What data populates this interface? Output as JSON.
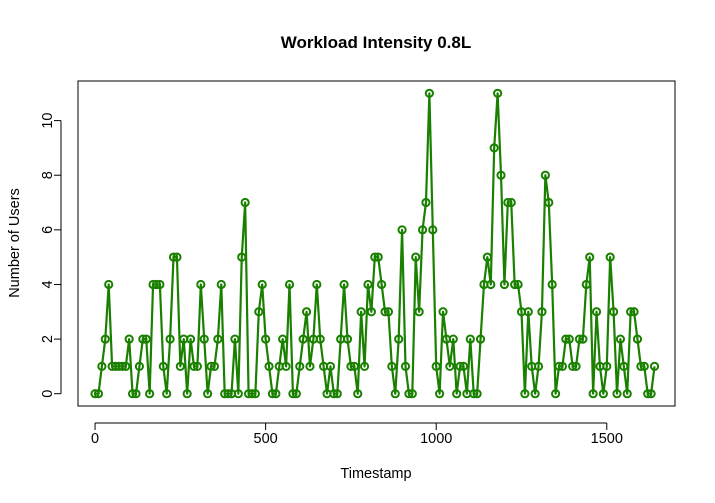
{
  "chart_data": {
    "type": "line",
    "title": "Workload Intensity 0.8L",
    "xlabel": "Timestamp",
    "ylabel": "Number of Users",
    "xlim": [
      -50,
      1700
    ],
    "ylim": [
      -0.45,
      11.45
    ],
    "x_ticks": [
      0,
      500,
      1000,
      1500
    ],
    "y_ticks": [
      0,
      2,
      4,
      6,
      8,
      10
    ],
    "grid": false,
    "legend": "none",
    "series": [
      {
        "color": "#1a8000",
        "marker": "open-circle",
        "x": [
          0,
          10,
          20,
          30,
          40,
          50,
          60,
          70,
          80,
          90,
          100,
          110,
          120,
          130,
          140,
          150,
          160,
          170,
          180,
          190,
          200,
          210,
          220,
          230,
          240,
          250,
          260,
          270,
          280,
          290,
          300,
          310,
          320,
          330,
          340,
          350,
          360,
          370,
          380,
          390,
          400,
          410,
          420,
          430,
          440,
          450,
          460,
          470,
          480,
          490,
          500,
          510,
          520,
          530,
          540,
          550,
          560,
          570,
          580,
          590,
          600,
          610,
          620,
          630,
          640,
          650,
          660,
          670,
          680,
          690,
          700,
          710,
          720,
          730,
          740,
          750,
          760,
          770,
          780,
          790,
          800,
          810,
          820,
          830,
          840,
          850,
          860,
          870,
          880,
          890,
          900,
          910,
          920,
          930,
          940,
          950,
          960,
          970,
          980,
          990,
          1000,
          1010,
          1020,
          1030,
          1040,
          1050,
          1060,
          1070,
          1080,
          1090,
          1100,
          1110,
          1120,
          1130,
          1140,
          1150,
          1160,
          1170,
          1180,
          1190,
          1200,
          1210,
          1220,
          1230,
          1240,
          1250,
          1260,
          1270,
          1280,
          1290,
          1300,
          1310,
          1320,
          1330,
          1340,
          1350,
          1360,
          1370,
          1380,
          1390,
          1400,
          1410,
          1420,
          1430,
          1440,
          1450,
          1460,
          1470,
          1480,
          1490,
          1500,
          1510,
          1520,
          1530,
          1540,
          1550,
          1560,
          1570,
          1580,
          1590,
          1600,
          1610,
          1620,
          1630,
          1640
        ],
        "y": [
          0,
          0,
          1,
          2,
          4,
          1,
          1,
          1,
          1,
          1,
          2,
          0,
          0,
          1,
          2,
          2,
          0,
          4,
          4,
          4,
          1,
          0,
          2,
          5,
          5,
          1,
          2,
          0,
          2,
          1,
          1,
          4,
          2,
          0,
          1,
          1,
          2,
          4,
          0,
          0,
          0,
          2,
          0,
          5,
          7,
          0,
          0,
          0,
          3,
          4,
          2,
          1,
          0,
          0,
          1,
          2,
          1,
          4,
          0,
          0,
          1,
          2,
          3,
          1,
          2,
          4,
          2,
          1,
          0,
          1,
          0,
          0,
          2,
          4,
          2,
          1,
          1,
          0,
          3,
          1,
          4,
          3,
          5,
          5,
          4,
          3,
          3,
          1,
          0,
          2,
          6,
          1,
          0,
          0,
          5,
          3,
          6,
          7,
          11,
          6,
          1,
          0,
          3,
          2,
          1,
          2,
          0,
          1,
          1,
          0,
          2,
          0,
          0,
          2,
          4,
          5,
          4,
          9,
          11,
          8,
          4,
          7,
          7,
          4,
          4,
          3,
          0,
          3,
          1,
          0,
          1,
          3,
          8,
          7,
          4,
          0,
          1,
          1,
          2,
          2,
          1,
          1,
          2,
          2,
          4,
          5,
          0,
          3,
          1,
          0,
          1,
          5,
          3,
          0,
          2,
          1,
          0,
          3,
          3,
          2,
          1,
          1,
          0,
          0,
          1
        ]
      }
    ]
  }
}
